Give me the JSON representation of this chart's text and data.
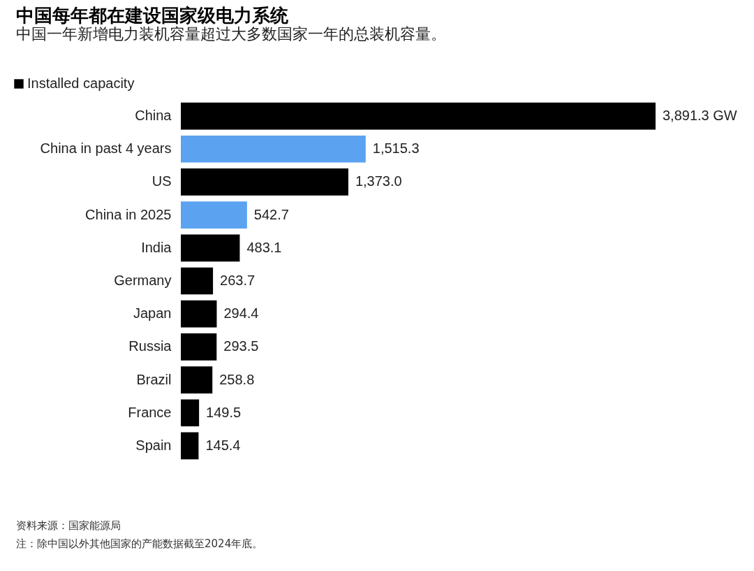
{
  "chart_data": {
    "type": "bar",
    "orientation": "horizontal",
    "title": "中国每年都在建设国家级电力系统",
    "subtitle": "中国一年新增电力装机容量超过大多数国家一年的总装机容量。",
    "categories": [
      "China",
      "China in past 4 years",
      "US",
      "China in 2025",
      "India",
      "Germany",
      "Japan",
      "Russia",
      "Brazil",
      "France",
      "Spain"
    ],
    "series": [
      {
        "name": "Installed capacity",
        "values": [
          3891.3,
          1515.3,
          1373.0,
          542.7,
          483.1,
          263.7,
          294.4,
          293.5,
          258.8,
          149.5,
          145.4
        ],
        "colors": [
          "#000000",
          "#5ba3f0",
          "#000000",
          "#5ba3f0",
          "#000000",
          "#000000",
          "#000000",
          "#000000",
          "#000000",
          "#000000",
          "#000000"
        ],
        "value_labels": [
          "3,891.3 GW",
          "1,515.3",
          "1,373.0",
          "542.7",
          "483.1",
          "263.7",
          "294.4",
          "293.5",
          "258.8",
          "149.5",
          "145.4"
        ]
      }
    ],
    "legend": "top left",
    "annotations": [
      "资料来源：国家能源局",
      "注：除中国以外其他国家的产能数据截至2024年底。"
    ]
  }
}
